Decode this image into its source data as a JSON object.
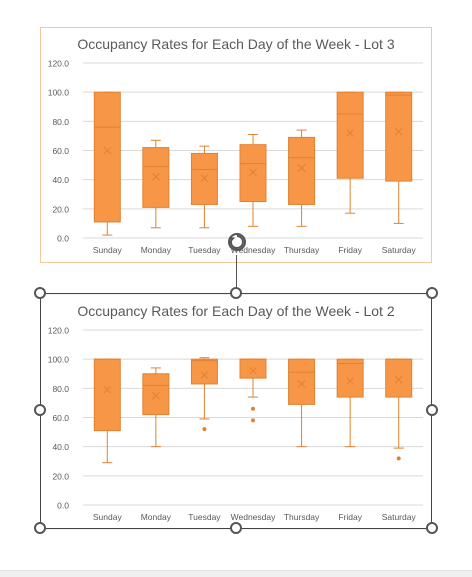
{
  "charts": [
    {
      "id": "lot3",
      "title": "Occupancy Rates for Each Day of the Week - Lot 3",
      "selected": false
    },
    {
      "id": "lot2",
      "title": "Occupancy Rates for Each Day of the Week - Lot 2",
      "selected": true
    }
  ],
  "colors": {
    "box_fill": "#F79646",
    "box_stroke": "#E08232",
    "grid": "#D9D9D9",
    "text": "#595959",
    "selection": "#444444"
  },
  "icons": {
    "rotate": "rotate-arrow-icon",
    "handle": "resize-handle-icon"
  },
  "chart_data": [
    {
      "type": "box",
      "title": "Occupancy Rates for Each Day of the Week - Lot 3",
      "categories": [
        "Sunday",
        "Monday",
        "Tuesday",
        "Wednesday",
        "Thursday",
        "Friday",
        "Saturday"
      ],
      "yticks": [
        "0.0",
        "20.0",
        "40.0",
        "60.0",
        "80.0",
        "100.0",
        "120.0"
      ],
      "ylim": [
        0,
        120
      ],
      "grid": true,
      "boxes": [
        {
          "min": 2,
          "q1": 11,
          "median": 76,
          "q3": 100,
          "max": 100,
          "mean": 60,
          "outliers": []
        },
        {
          "min": 7,
          "q1": 21,
          "median": 49,
          "q3": 62,
          "max": 67,
          "mean": 42,
          "outliers": []
        },
        {
          "min": 7,
          "q1": 23,
          "median": 47,
          "q3": 58,
          "max": 63,
          "mean": 41,
          "outliers": []
        },
        {
          "min": 8,
          "q1": 25,
          "median": 51,
          "q3": 64,
          "max": 71,
          "mean": 45,
          "outliers": []
        },
        {
          "min": 8,
          "q1": 23,
          "median": 55,
          "q3": 69,
          "max": 74,
          "mean": 48,
          "outliers": []
        },
        {
          "min": 17,
          "q1": 41,
          "median": 85,
          "q3": 100,
          "max": 100,
          "mean": 72,
          "outliers": []
        },
        {
          "min": 10,
          "q1": 39,
          "median": 98,
          "q3": 100,
          "max": 100,
          "mean": 73,
          "outliers": []
        }
      ]
    },
    {
      "type": "box",
      "title": "Occupancy Rates for Each Day of the Week - Lot 2",
      "categories": [
        "Sunday",
        "Monday",
        "Tuesday",
        "Wednesday",
        "Thursday",
        "Friday",
        "Saturday"
      ],
      "yticks": [
        "0.0",
        "20.0",
        "40.0",
        "60.0",
        "80.0",
        "100.0",
        "120.0"
      ],
      "ylim": [
        0,
        120
      ],
      "grid": true,
      "boxes": [
        {
          "min": 29,
          "q1": 51,
          "median": 100,
          "q3": 100,
          "max": 100,
          "mean": 79,
          "outliers": []
        },
        {
          "min": 40,
          "q1": 62,
          "median": 82,
          "q3": 90,
          "max": 94,
          "mean": 75,
          "outliers": []
        },
        {
          "min": 59,
          "q1": 83,
          "median": 99,
          "q3": 100,
          "max": 101,
          "mean": 89,
          "outliers": [
            52
          ]
        },
        {
          "min": 74,
          "q1": 87,
          "median": 100,
          "q3": 100,
          "max": 100,
          "mean": 92,
          "outliers": [
            66,
            58
          ]
        },
        {
          "min": 40,
          "q1": 69,
          "median": 91,
          "q3": 100,
          "max": 100,
          "mean": 83,
          "outliers": []
        },
        {
          "min": 40,
          "q1": 74,
          "median": 97,
          "q3": 100,
          "max": 100,
          "mean": 85,
          "outliers": []
        },
        {
          "min": 39,
          "q1": 74,
          "median": 100,
          "q3": 100,
          "max": 100,
          "mean": 86,
          "outliers": [
            32
          ]
        }
      ]
    }
  ]
}
